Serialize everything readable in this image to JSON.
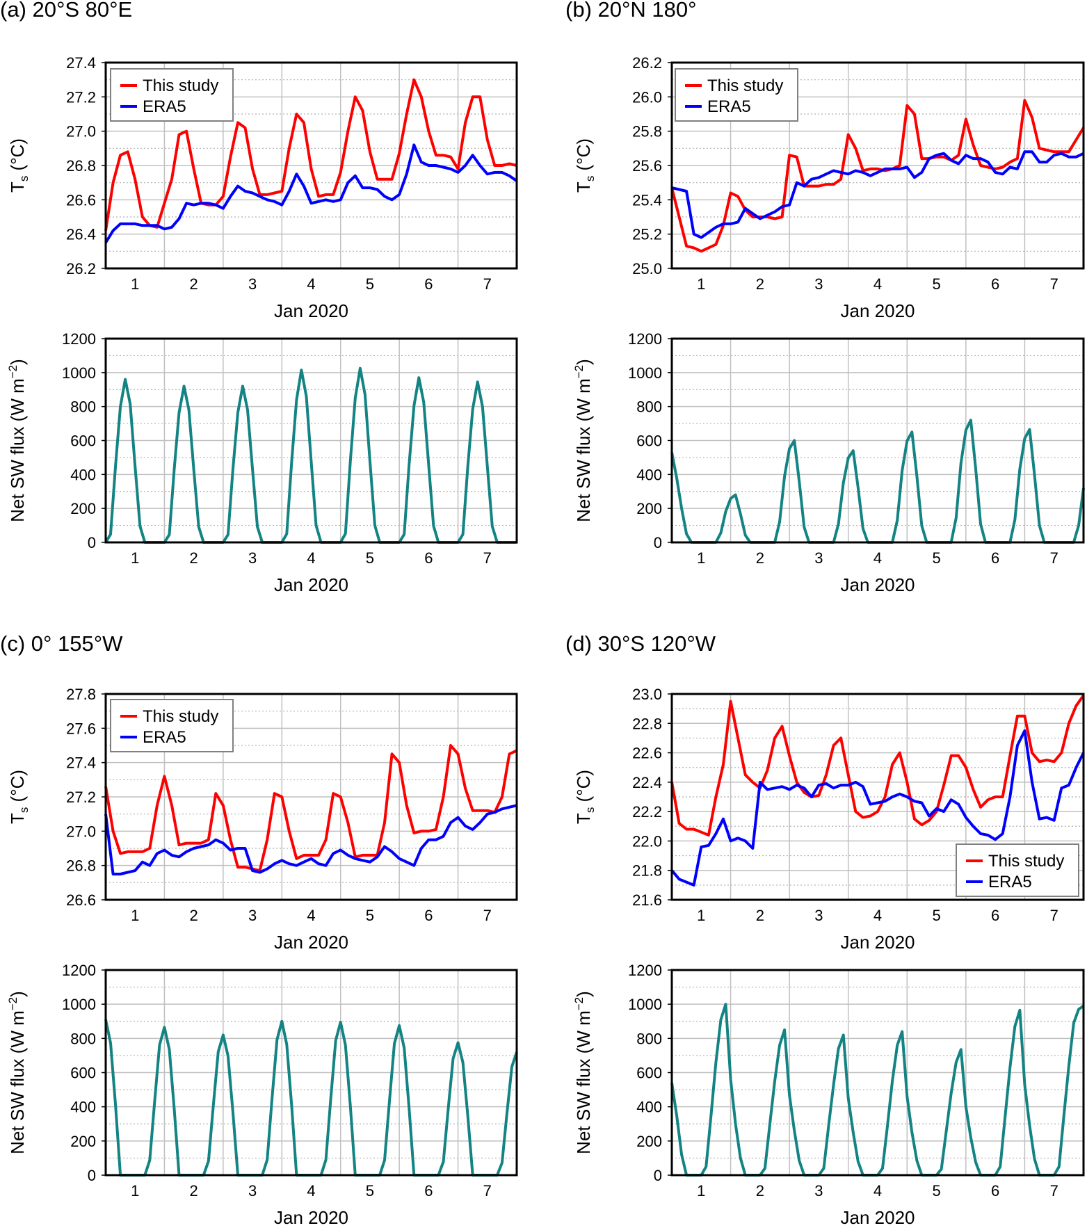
{
  "legend": {
    "this_study": "This study",
    "era5": "ERA5"
  },
  "colors": {
    "this_study": "#ff0000",
    "era5": "#0000ff",
    "sw_flux": "#138383"
  },
  "panels": [
    {
      "id": "a",
      "title": "(a) 20°S 80°E"
    },
    {
      "id": "b",
      "title": "(b) 20°N 180°"
    },
    {
      "id": "c",
      "title": "(c) 0° 155°W"
    },
    {
      "id": "d",
      "title": "(d) 30°S 120°W"
    }
  ],
  "x_axis": {
    "label": "Jan 2020",
    "tick_labels": [
      "1",
      "2",
      "3",
      "4",
      "5",
      "6",
      "7"
    ],
    "range_days": [
      0,
      7
    ]
  },
  "chart_data": [
    {
      "panel": "a",
      "type": "line",
      "kind": "Ts",
      "ylabel_main": "T",
      "ylabel_sub": "s",
      "ylabel_unit": " (°C)",
      "ylim": [
        26.2,
        27.4
      ],
      "y_ticks": [
        "26.2",
        "26.4",
        "26.6",
        "26.8",
        "27.0",
        "27.2",
        "27.4"
      ],
      "y_step": 0.2,
      "x_step_hours": 3,
      "grid": true,
      "legend_placement": "top-left",
      "series": [
        {
          "name": "This study",
          "values": [
            26.42,
            26.7,
            26.86,
            26.88,
            26.72,
            26.5,
            26.45,
            26.44,
            26.58,
            26.72,
            26.98,
            27.0,
            26.78,
            26.58,
            26.57,
            26.57,
            26.62,
            26.85,
            27.05,
            27.02,
            26.78,
            26.63,
            26.63,
            26.64,
            26.65,
            26.9,
            27.1,
            27.05,
            26.78,
            26.62,
            26.63,
            26.63,
            26.76,
            27.0,
            27.2,
            27.12,
            26.88,
            26.72,
            26.72,
            26.72,
            26.87,
            27.1,
            27.3,
            27.2,
            27.0,
            26.86,
            26.86,
            26.85,
            26.78,
            27.05,
            27.2,
            27.2,
            26.95,
            26.8,
            26.8,
            26.81,
            26.8
          ]
        },
        {
          "name": "ERA5",
          "values": [
            26.35,
            26.42,
            26.46,
            26.46,
            26.46,
            26.45,
            26.45,
            26.45,
            26.43,
            26.44,
            26.49,
            26.58,
            26.57,
            26.58,
            26.58,
            26.57,
            26.55,
            26.62,
            26.68,
            26.65,
            26.64,
            26.62,
            26.6,
            26.59,
            26.57,
            26.65,
            26.75,
            26.68,
            26.58,
            26.59,
            26.6,
            26.59,
            26.6,
            26.7,
            26.74,
            26.67,
            26.67,
            26.66,
            26.62,
            26.6,
            26.63,
            26.75,
            26.92,
            26.82,
            26.8,
            26.8,
            26.79,
            26.78,
            26.76,
            26.8,
            26.86,
            26.8,
            26.75,
            26.76,
            26.76,
            26.74,
            26.71
          ]
        }
      ]
    },
    {
      "panel": "a",
      "type": "line",
      "kind": "SW",
      "ylabel_main": "Net SW flux (W m",
      "ylabel_sup": "−2",
      "ylabel_unit": ")",
      "ylim": [
        0,
        1200
      ],
      "y_ticks": [
        "0",
        "200",
        "400",
        "600",
        "800",
        "1000",
        "1200"
      ],
      "y_step": 200,
      "x_step_hours": 2,
      "grid": true,
      "series": [
        {
          "name": "Net SW flux",
          "values": [
            0,
            48,
            450,
            800,
            960,
            815,
            450,
            96,
            0,
            0,
            0,
            0,
            0,
            46,
            430,
            765,
            920,
            780,
            430,
            92,
            0,
            0,
            0,
            0,
            0,
            46,
            430,
            765,
            920,
            780,
            430,
            92,
            0,
            0,
            0,
            0,
            0,
            50,
            475,
            840,
            1015,
            860,
            475,
            100,
            0,
            0,
            0,
            0,
            0,
            51,
            480,
            850,
            1025,
            870,
            480,
            100,
            0,
            0,
            0,
            0,
            0,
            48,
            455,
            805,
            970,
            825,
            455,
            97,
            0,
            0,
            0,
            0,
            0,
            47,
            445,
            785,
            945,
            800,
            445,
            95,
            0,
            0,
            0,
            0,
            0
          ]
        }
      ]
    },
    {
      "panel": "b",
      "type": "line",
      "kind": "Ts",
      "ylabel_main": "T",
      "ylabel_sub": "s",
      "ylabel_unit": " (°C)",
      "ylim": [
        25.0,
        26.2
      ],
      "y_ticks": [
        "25.0",
        "25.2",
        "25.4",
        "25.6",
        "25.8",
        "26.0",
        "26.2"
      ],
      "y_step": 0.2,
      "x_step_hours": 3,
      "grid": true,
      "legend_placement": "top-left",
      "series": [
        {
          "name": "This study",
          "values": [
            25.47,
            25.3,
            25.13,
            25.12,
            25.1,
            25.12,
            25.14,
            25.25,
            25.44,
            25.42,
            25.34,
            25.3,
            25.3,
            25.3,
            25.29,
            25.3,
            25.66,
            25.65,
            25.48,
            25.48,
            25.48,
            25.49,
            25.49,
            25.52,
            25.78,
            25.7,
            25.57,
            25.58,
            25.58,
            25.57,
            25.58,
            25.6,
            25.95,
            25.9,
            25.64,
            25.64,
            25.65,
            25.65,
            25.63,
            25.66,
            25.87,
            25.72,
            25.6,
            25.59,
            25.58,
            25.59,
            25.62,
            25.64,
            25.98,
            25.88,
            25.7,
            25.69,
            25.68,
            25.68,
            25.68,
            25.75,
            25.82
          ]
        },
        {
          "name": "ERA5",
          "values": [
            25.47,
            25.46,
            25.45,
            25.2,
            25.18,
            25.21,
            25.24,
            25.26,
            25.26,
            25.27,
            25.35,
            25.32,
            25.29,
            25.31,
            25.33,
            25.36,
            25.37,
            25.5,
            25.48,
            25.52,
            25.53,
            25.55,
            25.57,
            25.56,
            25.55,
            25.57,
            25.56,
            25.54,
            25.56,
            25.58,
            25.58,
            25.58,
            25.59,
            25.53,
            25.56,
            25.64,
            25.66,
            25.67,
            25.63,
            25.61,
            25.66,
            25.64,
            25.64,
            25.62,
            25.56,
            25.55,
            25.59,
            25.58,
            25.68,
            25.68,
            25.62,
            25.62,
            25.66,
            25.67,
            25.65,
            25.65,
            25.67
          ]
        }
      ]
    },
    {
      "panel": "b",
      "type": "line",
      "kind": "SW",
      "ylabel_main": "Net SW flux (W m",
      "ylabel_sup": "−2",
      "ylabel_unit": ")",
      "ylim": [
        0,
        1200
      ],
      "y_ticks": [
        "0",
        "200",
        "400",
        "600",
        "800",
        "1000",
        "1200"
      ],
      "y_step": 200,
      "x_step_hours": 2,
      "grid": true,
      "series": [
        {
          "name": "Net SW flux",
          "values": [
            530,
            380,
            200,
            50,
            0,
            0,
            0,
            0,
            0,
            0,
            56,
            182,
            258,
            280,
            168,
            42,
            0,
            0,
            0,
            0,
            0,
            0,
            120,
            390,
            552,
            600,
            360,
            90,
            0,
            0,
            0,
            0,
            0,
            0,
            108,
            351,
            497,
            540,
            324,
            81,
            0,
            0,
            0,
            0,
            0,
            0,
            130,
            423,
            598,
            650,
            390,
            98,
            0,
            0,
            0,
            0,
            0,
            0,
            144,
            468,
            662,
            720,
            432,
            108,
            0,
            0,
            0,
            0,
            0,
            0,
            133,
            432,
            612,
            665,
            399,
            100,
            0,
            0,
            0,
            0,
            0,
            0,
            0,
            100,
            320
          ]
        }
      ]
    },
    {
      "panel": "c",
      "type": "line",
      "kind": "Ts",
      "ylabel_main": "T",
      "ylabel_sub": "s",
      "ylabel_unit": " (°C)",
      "ylim": [
        26.6,
        27.8
      ],
      "y_ticks": [
        "26.6",
        "26.8",
        "27.0",
        "27.2",
        "27.4",
        "27.6",
        "27.8"
      ],
      "y_step": 0.2,
      "x_step_hours": 3,
      "grid": true,
      "legend_placement": "top-left",
      "series": [
        {
          "name": "This study",
          "values": [
            27.26,
            27.0,
            26.87,
            26.88,
            26.88,
            26.88,
            26.9,
            27.15,
            27.32,
            27.15,
            26.92,
            26.93,
            26.93,
            26.93,
            26.95,
            27.22,
            27.15,
            26.95,
            26.79,
            26.79,
            26.78,
            26.77,
            26.95,
            27.22,
            27.2,
            27.0,
            26.84,
            26.86,
            26.86,
            26.86,
            26.95,
            27.22,
            27.2,
            27.05,
            26.85,
            26.86,
            26.86,
            26.86,
            27.05,
            27.45,
            27.4,
            27.15,
            26.99,
            27.0,
            27.0,
            27.01,
            27.2,
            27.5,
            27.45,
            27.25,
            27.12,
            27.12,
            27.12,
            27.11,
            27.2,
            27.45,
            27.47
          ]
        },
        {
          "name": "ERA5",
          "values": [
            27.1,
            26.75,
            26.75,
            26.76,
            26.77,
            26.82,
            26.8,
            26.87,
            26.89,
            26.86,
            26.85,
            26.88,
            26.9,
            26.91,
            26.92,
            26.95,
            26.93,
            26.89,
            26.9,
            26.9,
            26.77,
            26.76,
            26.78,
            26.81,
            26.83,
            26.81,
            26.8,
            26.82,
            26.84,
            26.81,
            26.8,
            26.87,
            26.89,
            26.86,
            26.84,
            26.83,
            26.82,
            26.85,
            26.91,
            26.88,
            26.84,
            26.82,
            26.8,
            26.9,
            26.95,
            26.95,
            26.97,
            27.05,
            27.08,
            27.03,
            27.01,
            27.05,
            27.1,
            27.11,
            27.13,
            27.14,
            27.15
          ]
        }
      ]
    },
    {
      "panel": "c",
      "type": "line",
      "kind": "SW",
      "ylabel_main": "Net SW flux (W m",
      "ylabel_sup": "−2",
      "ylabel_unit": ")",
      "ylim": [
        0,
        1200
      ],
      "y_ticks": [
        "0",
        "200",
        "400",
        "600",
        "800",
        "1000",
        "1200"
      ],
      "y_step": 200,
      "x_step_hours": 2,
      "grid": true,
      "series": [
        {
          "name": "Net SW flux",
          "values": [
            910,
            773,
            410,
            0,
            0,
            0,
            0,
            0,
            0,
            87,
            433,
            761,
            865,
            735,
            389,
            0,
            0,
            0,
            0,
            0,
            0,
            82,
            410,
            722,
            820,
            697,
            369,
            0,
            0,
            0,
            0,
            0,
            0,
            90,
            450,
            792,
            900,
            765,
            405,
            0,
            0,
            0,
            0,
            0,
            0,
            90,
            448,
            788,
            895,
            761,
            403,
            0,
            0,
            0,
            0,
            0,
            0,
            88,
            438,
            770,
            875,
            744,
            394,
            0,
            0,
            0,
            0,
            0,
            0,
            78,
            388,
            682,
            775,
            659,
            349,
            0,
            0,
            0,
            0,
            0,
            0,
            72,
            360,
            634,
            720
          ]
        }
      ]
    },
    {
      "panel": "d",
      "type": "line",
      "kind": "Ts",
      "ylabel_main": "T",
      "ylabel_sub": "s",
      "ylabel_unit": " (°C)",
      "ylim": [
        21.6,
        23.0
      ],
      "y_ticks": [
        "21.6",
        "21.8",
        "22.0",
        "22.2",
        "22.4",
        "22.6",
        "22.8",
        "23.0"
      ],
      "y_step": 0.2,
      "x_step_hours": 3,
      "grid": true,
      "legend_placement": "bottom-right",
      "series": [
        {
          "name": "This study",
          "values": [
            22.4,
            22.12,
            22.08,
            22.08,
            22.06,
            22.04,
            22.3,
            22.52,
            22.95,
            22.7,
            22.45,
            22.4,
            22.36,
            22.48,
            22.7,
            22.78,
            22.58,
            22.4,
            22.33,
            22.3,
            22.31,
            22.45,
            22.65,
            22.7,
            22.45,
            22.2,
            22.16,
            22.17,
            22.2,
            22.3,
            22.52,
            22.6,
            22.4,
            22.15,
            22.11,
            22.14,
            22.2,
            22.38,
            22.58,
            22.58,
            22.5,
            22.35,
            22.23,
            22.28,
            22.3,
            22.3,
            22.58,
            22.85,
            22.85,
            22.6,
            22.54,
            22.55,
            22.54,
            22.6,
            22.8,
            22.92,
            22.99
          ]
        },
        {
          "name": "ERA5",
          "values": [
            21.8,
            21.74,
            21.72,
            21.7,
            21.96,
            21.97,
            22.05,
            22.15,
            22.0,
            22.02,
            22.0,
            21.95,
            22.4,
            22.35,
            22.36,
            22.37,
            22.35,
            22.38,
            22.36,
            22.3,
            22.38,
            22.39,
            22.36,
            22.38,
            22.38,
            22.4,
            22.37,
            22.25,
            22.26,
            22.27,
            22.3,
            22.32,
            22.3,
            22.27,
            22.26,
            22.17,
            22.22,
            22.2,
            22.28,
            22.25,
            22.16,
            22.1,
            22.05,
            22.04,
            22.01,
            22.05,
            22.3,
            22.65,
            22.75,
            22.4,
            22.15,
            22.16,
            22.14,
            22.36,
            22.38,
            22.5,
            22.6
          ]
        }
      ]
    },
    {
      "panel": "d",
      "type": "line",
      "kind": "SW",
      "ylabel_main": "Net SW flux (W m",
      "ylabel_sup": "−2",
      "ylabel_unit": ")",
      "ylim": [
        0,
        1200
      ],
      "y_ticks": [
        "0",
        "200",
        "400",
        "600",
        "800",
        "1000",
        "1200"
      ],
      "y_step": 200,
      "x_step_hours": 2,
      "grid": true,
      "series": [
        {
          "name": "Net SW flux",
          "values": [
            540,
            350,
            120,
            0,
            0,
            0,
            0,
            50,
            350,
            660,
            910,
            1000,
            560,
            300,
            100,
            0,
            0,
            0,
            0,
            40,
            300,
            550,
            760,
            850,
            470,
            260,
            85,
            0,
            0,
            0,
            0,
            40,
            290,
            530,
            740,
            820,
            450,
            250,
            80,
            0,
            0,
            0,
            0,
            40,
            290,
            550,
            760,
            840,
            460,
            250,
            85,
            0,
            0,
            0,
            0,
            35,
            260,
            480,
            660,
            735,
            400,
            220,
            75,
            0,
            0,
            0,
            0,
            50,
            340,
            630,
            870,
            965,
            530,
            290,
            95,
            0,
            0,
            0,
            0,
            50,
            350,
            640,
            890,
            970,
            990
          ]
        }
      ]
    }
  ]
}
